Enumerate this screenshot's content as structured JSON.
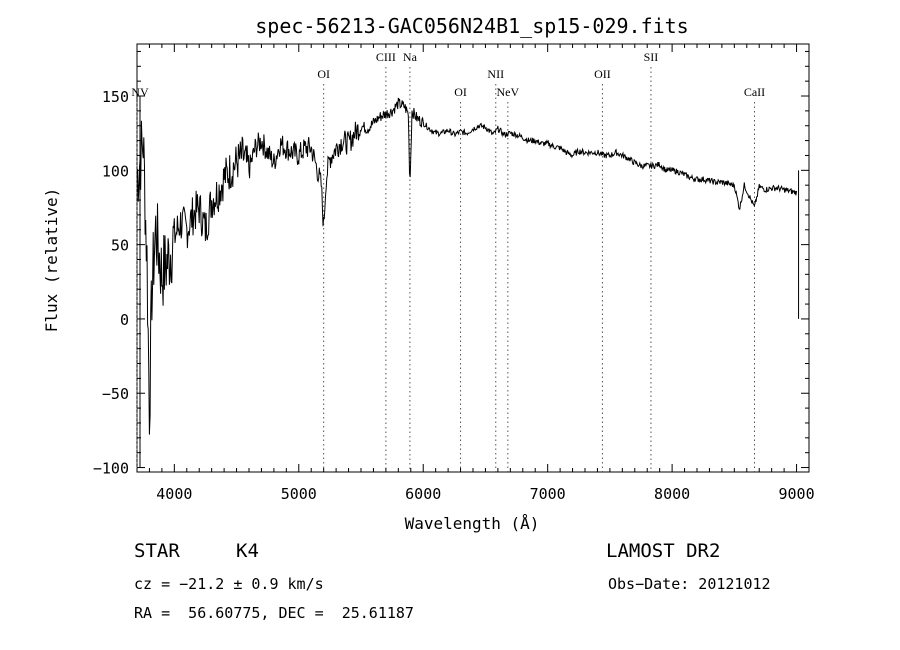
{
  "chart_data": {
    "type": "line",
    "title": "spec-56213-GAC056N24B1_sp15-029.fits",
    "xlabel": "Wavelength (Å)",
    "ylabel": "Flux (relative)",
    "xlim": [
      3700,
      9100
    ],
    "ylim": [
      -103,
      185
    ],
    "xticks": [
      4000,
      5000,
      6000,
      7000,
      8000,
      9000
    ],
    "yticks": [
      -100,
      -50,
      0,
      50,
      100,
      150
    ],
    "grid": false,
    "series": [
      {
        "x": [
          3700,
          3750,
          3780,
          3800,
          3820,
          3850,
          3900,
          3950,
          4000,
          4050,
          4100,
          4150,
          4200,
          4250,
          4300,
          4350,
          4400,
          4450,
          4500,
          4550,
          4600,
          4650,
          4700,
          4750,
          4800,
          4850,
          4900,
          4950,
          5000,
          5050,
          5100,
          5150,
          5180,
          5200,
          5220,
          5250,
          5300,
          5350,
          5400,
          5450,
          5500,
          5550,
          5600,
          5650,
          5700,
          5750,
          5800,
          5850,
          5880,
          5893,
          5910,
          5950,
          6000,
          6050,
          6100,
          6150,
          6200,
          6250,
          6300,
          6350,
          6400,
          6450,
          6500,
          6563,
          6600,
          6650,
          6700,
          6750,
          6800,
          6850,
          6900,
          6950,
          7000,
          7050,
          7100,
          7150,
          7200,
          7250,
          7300,
          7350,
          7400,
          7450,
          7500,
          7550,
          7600,
          7650,
          7700,
          7750,
          7800,
          7850,
          7900,
          7950,
          8000,
          8050,
          8100,
          8150,
          8200,
          8250,
          8300,
          8350,
          8400,
          8450,
          8500,
          8542,
          8580,
          8662,
          8700,
          8750,
          8800,
          8850,
          8900,
          8950,
          9000
        ],
        "values": [
          95,
          120,
          40,
          -60,
          20,
          60,
          30,
          40,
          55,
          65,
          60,
          70,
          75,
          60,
          80,
          85,
          95,
          100,
          105,
          110,
          100,
          115,
          120,
          112,
          105,
          118,
          115,
          112,
          110,
          115,
          115,
          100,
          90,
          62,
          95,
          108,
          115,
          120,
          118,
          125,
          130,
          128,
          132,
          136,
          138,
          140,
          145,
          143,
          138,
          90,
          140,
          135,
          132,
          128,
          125,
          125,
          127,
          124,
          126,
          125,
          128,
          130,
          129,
          124,
          128,
          124,
          125,
          124,
          122,
          120,
          120,
          118,
          118,
          116,
          115,
          112,
          110,
          113,
          112,
          112,
          112,
          110,
          110,
          112,
          110,
          108,
          105,
          103,
          103,
          103,
          104,
          100,
          100,
          99,
          97,
          95,
          94,
          94,
          93,
          92,
          92,
          91,
          90,
          74,
          90,
          75,
          89,
          87,
          88,
          88,
          87,
          86,
          85
        ]
      }
    ],
    "line_markers": [
      {
        "label": "NV",
        "x": 3700,
        "row": 2
      },
      {
        "label": "OI",
        "x": 5200,
        "row": 1
      },
      {
        "label": "CIII",
        "x": 5700,
        "row": 0
      },
      {
        "label": "Na",
        "x": 5893,
        "row": 0
      },
      {
        "label": "OI",
        "x": 6300,
        "row": 2
      },
      {
        "label": "NII",
        "x": 6583,
        "row": 1
      },
      {
        "label": "NeV",
        "x": 6680,
        "row": 2
      },
      {
        "label": "OII",
        "x": 7440,
        "row": 1
      },
      {
        "label": "SII",
        "x": 7830,
        "row": 0
      },
      {
        "label": "CaII",
        "x": 8662,
        "row": 2
      }
    ]
  },
  "info": {
    "class_label": "STAR",
    "subclass": "K4",
    "survey": "LAMOST DR2",
    "cz": "cz = −21.2 ± 0.9 km/s",
    "obs_date": "Obs−Date: 20121012",
    "coords": "RA =  56.60775, DEC =  25.61187"
  }
}
